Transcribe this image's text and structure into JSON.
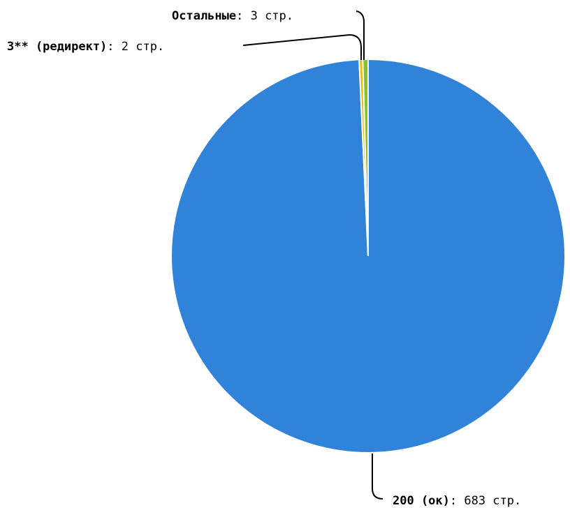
{
  "chart_data": {
    "type": "pie",
    "title": "",
    "unit": "стр.",
    "slices": [
      {
        "name": "200 (ок)",
        "value": 683,
        "color": "#3182d9"
      },
      {
        "name": "3** (редирект)",
        "value": 2,
        "color": "#f2b705"
      },
      {
        "name": "Остальные",
        "value": 3,
        "color": "#8cc21f"
      }
    ],
    "labels": [
      {
        "name": "200 (ок)",
        "value_text": ": 683 стр."
      },
      {
        "name": "3** (редирект)",
        "value_text": ": 2 стр."
      },
      {
        "name": "Остальные",
        "value_text": ": 3 стр."
      }
    ]
  }
}
